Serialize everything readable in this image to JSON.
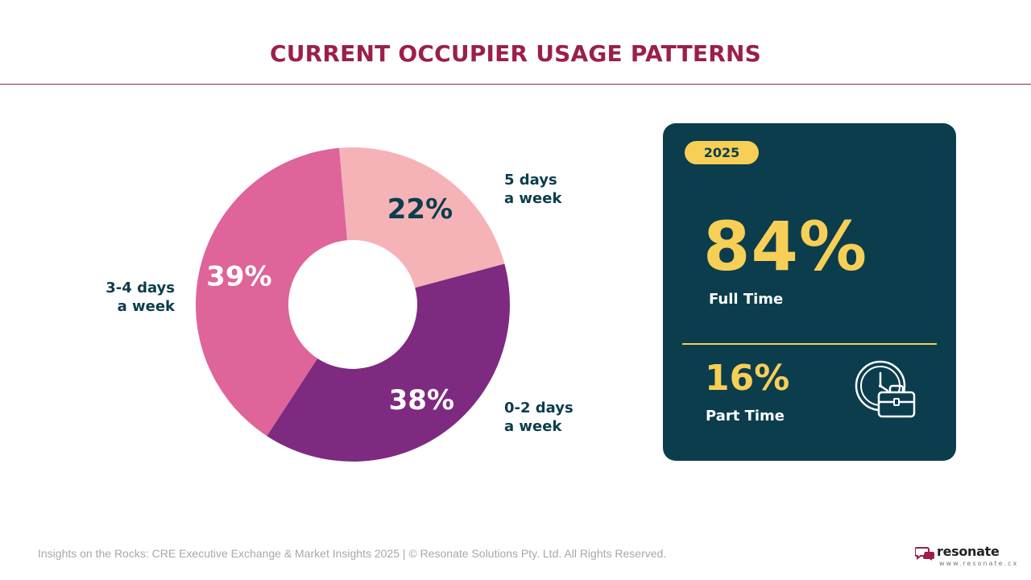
{
  "header": {
    "title": "CURRENT OCCUPIER USAGE PATTERNS"
  },
  "chart_data": {
    "type": "pie",
    "style": "donut",
    "categories": [
      "5 days a week",
      "0-2 days a week",
      "3-4 days a week"
    ],
    "values": [
      22,
      38,
      39
    ],
    "value_labels": [
      "22%",
      "38%",
      "39%"
    ],
    "colors": [
      "#f5b3b8",
      "#7e2a80",
      "#de6499"
    ],
    "value_label_colors": [
      "#0b3d4d",
      "#ffffff",
      "#ffffff"
    ],
    "legend": "category labels beside each slice",
    "category_labels": [
      {
        "lines": [
          "5 days",
          "a week"
        ]
      },
      {
        "lines": [
          "0-2 days",
          "a week"
        ]
      },
      {
        "lines": [
          "3-4 days",
          "a week"
        ]
      }
    ]
  },
  "stats_card": {
    "year": "2025",
    "full_time": {
      "value": "84%",
      "label": "Full Time"
    },
    "part_time": {
      "value": "16%",
      "label": "Part Time"
    },
    "icon": "clock-briefcase-icon",
    "background": "#0b3d4d",
    "accent": "#f7cf57"
  },
  "footer": {
    "text": "Insights on the Rocks: CRE Executive Exchange & Market Insights 2025 | © Resonate Solutions Pty. Ltd. All Rights Reserved."
  },
  "brand": {
    "name": "resonate",
    "url": "www.resonate.cx",
    "color": "#9b1f4b"
  }
}
